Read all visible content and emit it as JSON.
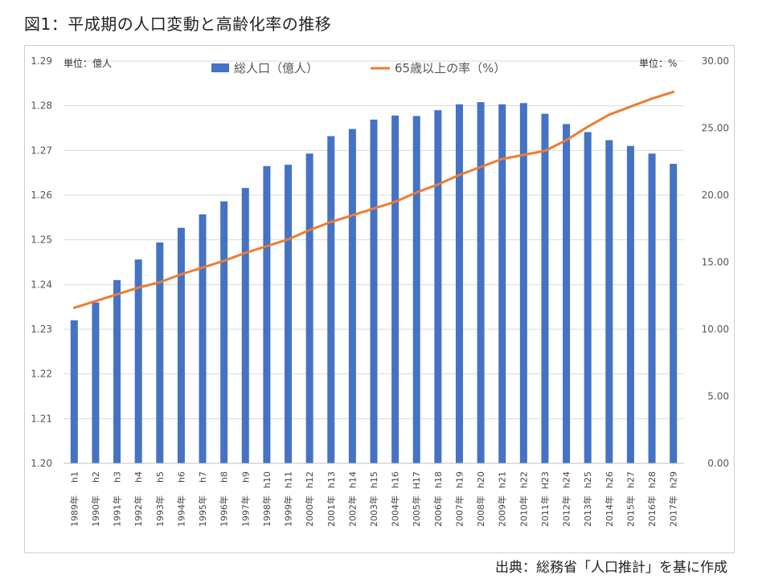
{
  "figure": {
    "title": "図1：平成期の人口変動と高齢化率の推移",
    "source": "出典：総務省「人口推計」を基に作成"
  },
  "chart_data": {
    "type": "bar",
    "y_left_unit_label": "単位：億人",
    "y_right_unit_label": "単位：%",
    "categories_era": [
      "h1",
      "h2",
      "h3",
      "h4",
      "h5",
      "h6",
      "h7",
      "h8",
      "h9",
      "h10",
      "h11",
      "h12",
      "h13",
      "h14",
      "h15",
      "h16",
      "H17",
      "h18",
      "h19",
      "h20",
      "h21",
      "h22",
      "H23",
      "h24",
      "h25",
      "h26",
      "h27",
      "h28",
      "h29"
    ],
    "categories_year": [
      "1989年",
      "1990年",
      "1991年",
      "1992年",
      "1993年",
      "1994年",
      "1995年",
      "1996年",
      "1997年",
      "1998年",
      "1999年",
      "2000年",
      "2001年",
      "2002年",
      "2003年",
      "2004年",
      "2005年",
      "2006年",
      "2007年",
      "2008年",
      "2009年",
      "2010年",
      "2011年",
      "2012年",
      "2013年",
      "2014年",
      "2015年",
      "2016年",
      "2017年"
    ],
    "ylim_left": [
      1.2,
      1.29
    ],
    "yticks_left": [
      "1.20",
      "1.21",
      "1.22",
      "1.23",
      "1.24",
      "1.25",
      "1.26",
      "1.27",
      "1.28",
      "1.29"
    ],
    "ylim_right": [
      0,
      30
    ],
    "yticks_right": [
      "0.00",
      "5.00",
      "10.00",
      "15.00",
      "20.00",
      "25.00",
      "30.00"
    ],
    "grid": true,
    "legend_position": "top-center",
    "series": [
      {
        "name": "総人口（億人）",
        "type": "bar",
        "axis": "left",
        "color": "#4472C4",
        "values": [
          1.232,
          1.236,
          1.241,
          1.2456,
          1.2494,
          1.2527,
          1.2557,
          1.2586,
          1.2616,
          1.2665,
          1.2668,
          1.2693,
          1.2732,
          1.2748,
          1.2769,
          1.2778,
          1.2777,
          1.279,
          1.2803,
          1.2808,
          1.2803,
          1.2806,
          1.2782,
          1.2759,
          1.2741,
          1.2723,
          1.271,
          1.2693,
          1.267
        ]
      },
      {
        "name": "65歳以上の率（%）",
        "type": "line",
        "axis": "right",
        "color": "#ED7D31",
        "values": [
          11.6,
          12.1,
          12.6,
          13.1,
          13.5,
          14.1,
          14.6,
          15.1,
          15.7,
          16.2,
          16.7,
          17.4,
          18.0,
          18.5,
          19.0,
          19.5,
          20.2,
          20.8,
          21.5,
          22.1,
          22.7,
          23.0,
          23.3,
          24.1,
          25.1,
          26.0,
          26.6,
          27.2,
          27.7
        ]
      }
    ]
  }
}
